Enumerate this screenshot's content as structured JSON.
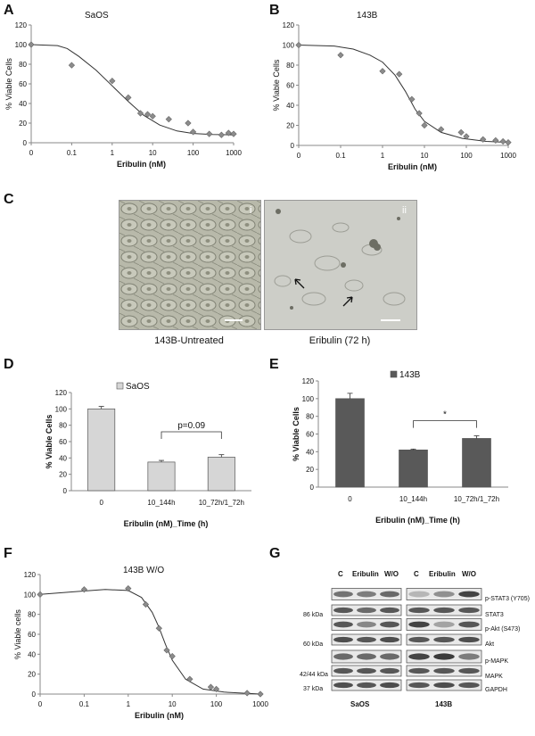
{
  "panels": {
    "A": "A",
    "B": "B",
    "C": "C",
    "D": "D",
    "E": "E",
    "F": "F",
    "G": "G"
  },
  "chart_data": [
    {
      "id": "A",
      "type": "scatter",
      "title": "SaOS",
      "xlabel": "Eribulin (nM)",
      "ylabel": "% Viable Cells",
      "xscale": "log",
      "ylim": [
        0,
        120
      ],
      "xticks": [
        "0",
        "0.1",
        "1",
        "10",
        "100",
        "1000"
      ],
      "yticks": [
        "0",
        "20",
        "40",
        "60",
        "80",
        "100",
        "120"
      ],
      "x": [
        0,
        0.1,
        1,
        2.5,
        5,
        7.5,
        10,
        25,
        75,
        100,
        250,
        500,
        750,
        1000
      ],
      "y": [
        100,
        79,
        63,
        46,
        30,
        29,
        27,
        24,
        20,
        11,
        9,
        8,
        10,
        9
      ],
      "fit": [
        [
          0,
          100
        ],
        [
          0.02,
          99
        ],
        [
          0.06,
          96
        ],
        [
          0.15,
          88
        ],
        [
          0.4,
          74
        ],
        [
          1,
          58
        ],
        [
          2.5,
          42
        ],
        [
          6,
          28
        ],
        [
          15,
          18
        ],
        [
          40,
          12
        ],
        [
          100,
          9.5
        ],
        [
          300,
          8.5
        ],
        [
          1000,
          8
        ]
      ]
    },
    {
      "id": "B",
      "type": "scatter",
      "title": "143B",
      "xlabel": "Eribulin (nM)",
      "ylabel": "% Viable Cells",
      "xscale": "log",
      "ylim": [
        0,
        120
      ],
      "xticks": [
        "0",
        "0.1",
        "1",
        "10",
        "100",
        "1000"
      ],
      "yticks": [
        "0",
        "20",
        "40",
        "60",
        "80",
        "100",
        "120"
      ],
      "x": [
        0,
        0.1,
        1,
        2.5,
        5,
        7.5,
        10,
        25,
        75,
        100,
        250,
        500,
        750,
        1000
      ],
      "y": [
        100,
        90,
        74,
        71,
        46,
        32,
        20,
        16,
        13,
        9,
        6,
        5,
        4,
        3
      ],
      "fit": [
        [
          0,
          100
        ],
        [
          0.05,
          99
        ],
        [
          0.2,
          96
        ],
        [
          0.5,
          90
        ],
        [
          1,
          83
        ],
        [
          2,
          70
        ],
        [
          3.5,
          54
        ],
        [
          6,
          36
        ],
        [
          10,
          24
        ],
        [
          25,
          13
        ],
        [
          80,
          7
        ],
        [
          300,
          4
        ],
        [
          1000,
          3
        ]
      ]
    },
    {
      "id": "D",
      "type": "bar",
      "legend": "SaOS",
      "xlabel": "Eribulin (nM)_Time (h)",
      "ylabel": "% Viable Cells",
      "ylim": [
        0,
        120
      ],
      "yticks": [
        "0",
        "20",
        "40",
        "60",
        "80",
        "100",
        "120"
      ],
      "categories": [
        "0",
        "10_144h",
        "10_72h/1_72h"
      ],
      "values": [
        100,
        35,
        41
      ],
      "errors": [
        3,
        2,
        3
      ],
      "annotation": "p=0.09"
    },
    {
      "id": "E",
      "type": "bar",
      "legend": "143B",
      "xlabel": "Eribulin (nM)_Time (h)",
      "ylabel": "% Viable Cells",
      "ylim": [
        0,
        120
      ],
      "yticks": [
        "0",
        "20",
        "40",
        "60",
        "80",
        "100",
        "120"
      ],
      "categories": [
        "0",
        "10_144h",
        "10_72h/1_72h"
      ],
      "values": [
        100,
        42,
        55
      ],
      "errors": [
        6,
        1,
        3
      ],
      "annotation": "*"
    },
    {
      "id": "F",
      "type": "scatter",
      "title": "143B  W/O",
      "xlabel": "Eribulin (nM)",
      "ylabel": "% Viable cells",
      "xscale": "log",
      "ylim": [
        0,
        120
      ],
      "xticks": [
        "0",
        "0.1",
        "1",
        "10",
        "100",
        "1000"
      ],
      "yticks": [
        "0",
        "20",
        "40",
        "60",
        "80",
        "100",
        "120"
      ],
      "x": [
        0,
        0.1,
        1,
        2.5,
        5,
        7.5,
        10,
        25,
        75,
        100,
        500,
        1000
      ],
      "y": [
        100,
        105,
        106,
        90,
        66,
        44,
        38,
        15,
        7,
        5,
        1,
        0
      ],
      "fit": [
        [
          0,
          100
        ],
        [
          0.05,
          103
        ],
        [
          0.3,
          105
        ],
        [
          1,
          104
        ],
        [
          2,
          97
        ],
        [
          3.5,
          82
        ],
        [
          5,
          67
        ],
        [
          7,
          50
        ],
        [
          10,
          34
        ],
        [
          20,
          15
        ],
        [
          50,
          5
        ],
        [
          150,
          2
        ],
        [
          1000,
          0
        ]
      ]
    }
  ],
  "micrographs": {
    "left_caption": "143B-Untreated",
    "right_caption": "Eribulin (72 h)",
    "left_tag": "i",
    "right_tag": "ii"
  },
  "western": {
    "group_headers": [
      "C",
      "Eribulin",
      "W/O"
    ],
    "cell_lines": [
      "SaOS",
      "143B"
    ],
    "markers": [
      "86 kDa",
      "60 kDa",
      "42/44 kDa",
      "37 kDa"
    ],
    "proteins": [
      "p-STAT3 (Y705)",
      "STAT3",
      "p-Akt (S473)",
      "Akt",
      "p-MAPK",
      "MAPK",
      "GAPDH"
    ]
  }
}
